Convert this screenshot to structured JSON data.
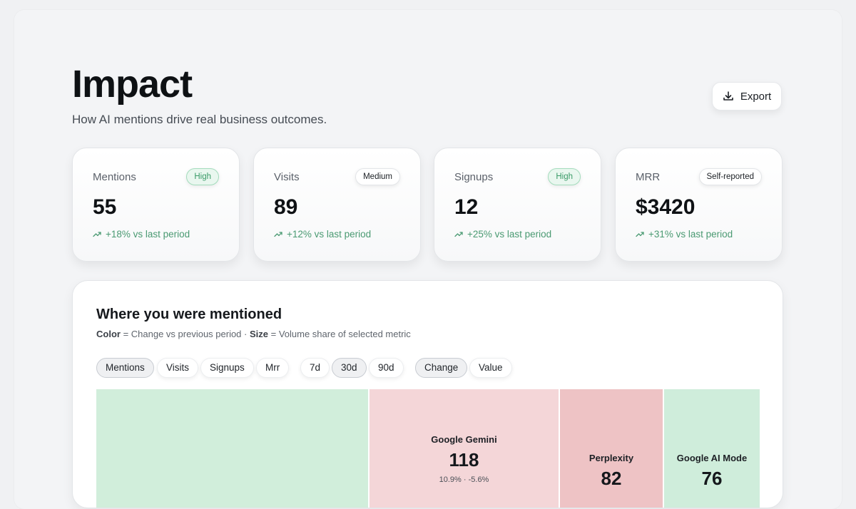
{
  "header": {
    "title": "Impact",
    "subtitle": "How AI mentions drive real business outcomes.",
    "export_label": "Export"
  },
  "stats": [
    {
      "label": "Mentions",
      "badge": "High",
      "value": "55",
      "change": "+18% vs last period"
    },
    {
      "label": "Visits",
      "badge": "Medium",
      "value": "89",
      "change": "+12% vs last period"
    },
    {
      "label": "Signups",
      "badge": "High",
      "value": "12",
      "change": "+25% vs last period"
    },
    {
      "label": "MRR",
      "badge": "Self-reported",
      "value": "$3420",
      "change": "+31% vs last period"
    }
  ],
  "section": {
    "title": "Where you were mentioned",
    "legend_color_key": "Color",
    "legend_color_text": " = Change vs previous period · ",
    "legend_size_key": "Size",
    "legend_size_text": " = Volume share of selected metric"
  },
  "filters": {
    "metrics": [
      "Mentions",
      "Visits",
      "Signups",
      "Mrr"
    ],
    "metric_selected": "Mentions",
    "periods": [
      "7d",
      "30d",
      "90d"
    ],
    "period_selected": "30d",
    "modes": [
      "Change",
      "Value"
    ],
    "mode_selected": "Change"
  },
  "treemap": {
    "tiles": [
      {
        "name": "",
        "value": "",
        "meta": "",
        "color": "#d1eedb"
      },
      {
        "name": "Google Gemini",
        "value": "118",
        "meta": "10.9% · -5.6%",
        "color": "#f4d6d8"
      },
      {
        "name": "Perplexity",
        "value": "82",
        "meta": "",
        "color": "#eec3c5"
      },
      {
        "name": "Google AI Mode",
        "value": "76",
        "meta": "",
        "color": "#cfeddb"
      }
    ]
  },
  "colors": {
    "positive": "#4a9a72",
    "badge_high_bg": "#e9f7ef",
    "badge_high_border": "#a3dcbc"
  }
}
